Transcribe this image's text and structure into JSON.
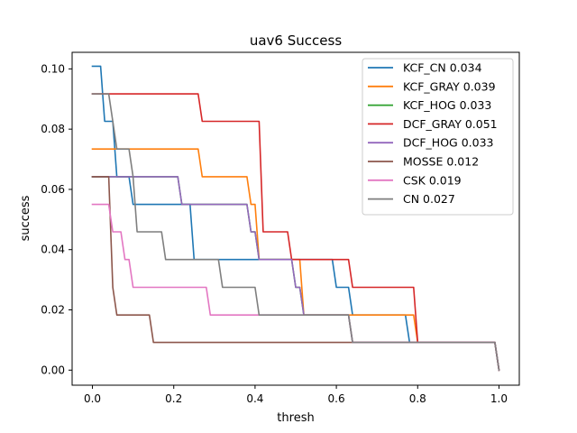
{
  "chart_data": {
    "type": "line",
    "title": "uav6 Success",
    "xlabel": "thresh",
    "ylabel": "success",
    "xlim": [
      -0.05,
      1.05
    ],
    "ylim": [
      -0.005,
      0.1055
    ],
    "xticks": [
      0.0,
      0.2,
      0.4,
      0.6,
      0.8,
      1.0
    ],
    "xtick_labels": [
      "0.0",
      "0.2",
      "0.4",
      "0.6",
      "0.8",
      "1.0"
    ],
    "yticks": [
      0.0,
      0.02,
      0.04,
      0.06,
      0.08,
      0.1
    ],
    "ytick_labels": [
      "0.00",
      "0.02",
      "0.04",
      "0.06",
      "0.08",
      "0.10"
    ],
    "grid": false,
    "legend_position": "top-right",
    "series": [
      {
        "name": "KCF_CN 0.034",
        "color": "#1f77b4",
        "points": [
          [
            0.0,
            0.1009
          ],
          [
            0.02,
            0.1009
          ],
          [
            0.03,
            0.0826
          ],
          [
            0.05,
            0.0826
          ],
          [
            0.06,
            0.0642
          ],
          [
            0.09,
            0.0642
          ],
          [
            0.1,
            0.055
          ],
          [
            0.24,
            0.055
          ],
          [
            0.25,
            0.0367
          ],
          [
            0.59,
            0.0367
          ],
          [
            0.6,
            0.0275
          ],
          [
            0.63,
            0.0275
          ],
          [
            0.64,
            0.0183
          ],
          [
            0.77,
            0.0183
          ],
          [
            0.78,
            0.0092
          ],
          [
            0.99,
            0.0092
          ],
          [
            1.0,
            0.0
          ]
        ]
      },
      {
        "name": "KCF_GRAY 0.039",
        "color": "#ff7f0e",
        "points": [
          [
            0.0,
            0.0734
          ],
          [
            0.26,
            0.0734
          ],
          [
            0.27,
            0.0642
          ],
          [
            0.38,
            0.0642
          ],
          [
            0.39,
            0.055
          ],
          [
            0.4,
            0.055
          ],
          [
            0.41,
            0.0367
          ],
          [
            0.51,
            0.0367
          ],
          [
            0.52,
            0.0183
          ],
          [
            0.79,
            0.0183
          ],
          [
            0.8,
            0.0092
          ],
          [
            0.99,
            0.0092
          ],
          [
            1.0,
            0.0
          ]
        ]
      },
      {
        "name": "KCF_HOG 0.033",
        "color": "#2ca02c",
        "points": [
          [
            0.0,
            0.0642
          ],
          [
            0.21,
            0.0642
          ],
          [
            0.22,
            0.055
          ],
          [
            0.38,
            0.055
          ],
          [
            0.39,
            0.0459
          ],
          [
            0.4,
            0.0459
          ],
          [
            0.41,
            0.0367
          ],
          [
            0.49,
            0.0367
          ],
          [
            0.5,
            0.0275
          ],
          [
            0.51,
            0.0275
          ],
          [
            0.52,
            0.0183
          ],
          [
            0.63,
            0.0183
          ],
          [
            0.64,
            0.0092
          ],
          [
            0.99,
            0.0092
          ],
          [
            1.0,
            0.0
          ]
        ]
      },
      {
        "name": "DCF_GRAY 0.051",
        "color": "#d62728",
        "points": [
          [
            0.0,
            0.0917
          ],
          [
            0.26,
            0.0917
          ],
          [
            0.27,
            0.0826
          ],
          [
            0.41,
            0.0826
          ],
          [
            0.42,
            0.0459
          ],
          [
            0.48,
            0.0459
          ],
          [
            0.49,
            0.0367
          ],
          [
            0.63,
            0.0367
          ],
          [
            0.64,
            0.0275
          ],
          [
            0.79,
            0.0275
          ],
          [
            0.8,
            0.0092
          ],
          [
            0.99,
            0.0092
          ],
          [
            1.0,
            0.0
          ]
        ]
      },
      {
        "name": "DCF_HOG 0.033",
        "color": "#9467bd",
        "points": [
          [
            0.0,
            0.0642
          ],
          [
            0.21,
            0.0642
          ],
          [
            0.22,
            0.055
          ],
          [
            0.38,
            0.055
          ],
          [
            0.39,
            0.0459
          ],
          [
            0.4,
            0.0459
          ],
          [
            0.41,
            0.0367
          ],
          [
            0.49,
            0.0367
          ],
          [
            0.5,
            0.0275
          ],
          [
            0.51,
            0.0275
          ],
          [
            0.52,
            0.0183
          ],
          [
            0.63,
            0.0183
          ],
          [
            0.64,
            0.0092
          ],
          [
            0.99,
            0.0092
          ],
          [
            1.0,
            0.0
          ]
        ]
      },
      {
        "name": "MOSSE 0.012",
        "color": "#8c564b",
        "points": [
          [
            0.0,
            0.0642
          ],
          [
            0.04,
            0.0642
          ],
          [
            0.05,
            0.0275
          ],
          [
            0.06,
            0.0183
          ],
          [
            0.14,
            0.0183
          ],
          [
            0.15,
            0.0092
          ],
          [
            0.99,
            0.0092
          ],
          [
            1.0,
            0.0
          ]
        ]
      },
      {
        "name": "CSK 0.019",
        "color": "#e377c2",
        "points": [
          [
            0.0,
            0.055
          ],
          [
            0.04,
            0.055
          ],
          [
            0.05,
            0.0459
          ],
          [
            0.07,
            0.0459
          ],
          [
            0.08,
            0.0367
          ],
          [
            0.09,
            0.0367
          ],
          [
            0.1,
            0.0275
          ],
          [
            0.28,
            0.0275
          ],
          [
            0.29,
            0.0183
          ],
          [
            0.63,
            0.0183
          ],
          [
            0.64,
            0.0092
          ],
          [
            0.99,
            0.0092
          ],
          [
            1.0,
            0.0
          ]
        ]
      },
      {
        "name": "CN 0.027",
        "color": "#7f7f7f",
        "points": [
          [
            0.0,
            0.0917
          ],
          [
            0.04,
            0.0917
          ],
          [
            0.05,
            0.0826
          ],
          [
            0.06,
            0.0734
          ],
          [
            0.09,
            0.0734
          ],
          [
            0.1,
            0.0642
          ],
          [
            0.11,
            0.0459
          ],
          [
            0.17,
            0.0459
          ],
          [
            0.18,
            0.0367
          ],
          [
            0.31,
            0.0367
          ],
          [
            0.32,
            0.0275
          ],
          [
            0.4,
            0.0275
          ],
          [
            0.41,
            0.0183
          ],
          [
            0.63,
            0.0183
          ],
          [
            0.64,
            0.0092
          ],
          [
            0.99,
            0.0092
          ],
          [
            1.0,
            0.0
          ]
        ]
      }
    ]
  }
}
